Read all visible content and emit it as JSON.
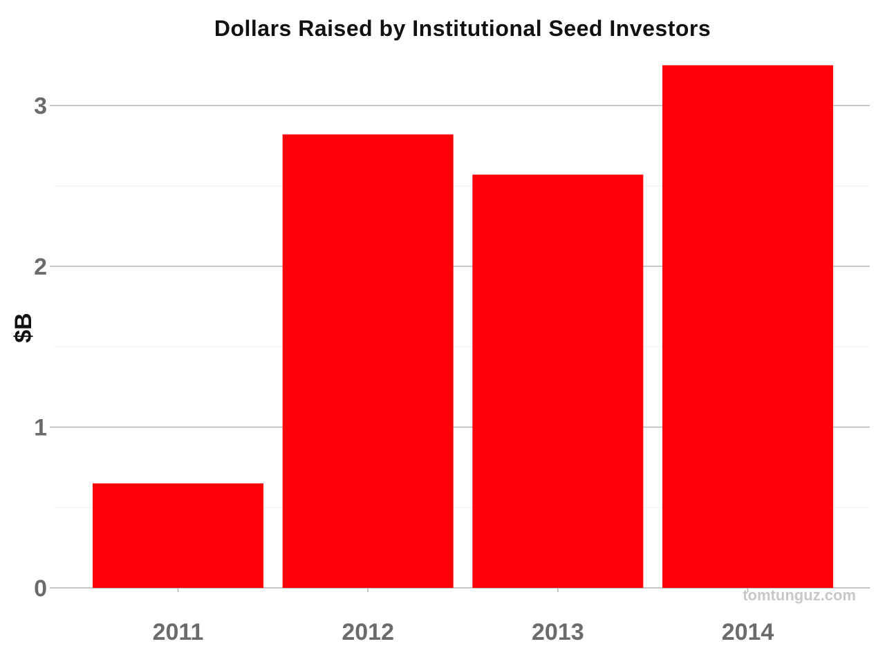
{
  "chart_data": {
    "type": "bar",
    "title": "Dollars Raised by Institutional Seed Investors",
    "xlabel": "",
    "ylabel": "$B",
    "categories": [
      "2011",
      "2012",
      "2013",
      "2014"
    ],
    "values": [
      0.65,
      2.82,
      2.57,
      3.25
    ],
    "ylim": [
      0,
      3.25
    ],
    "yticks": [
      0,
      1,
      2,
      3
    ],
    "ytick_labels": [
      "0",
      "1",
      "2",
      "3"
    ],
    "grid": true,
    "minor_grid": true,
    "legend": "none",
    "bar_color": "#ff0008",
    "major_grid_color": "#b3b3b3",
    "minor_grid_color": "#eeeeee"
  },
  "watermark": "tomtunguz.com"
}
